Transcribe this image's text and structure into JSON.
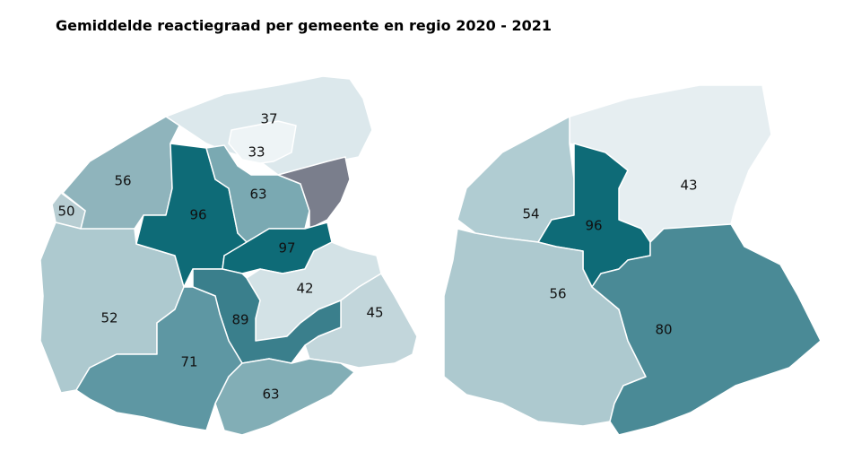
{
  "title": "Gemiddelde reactiegraad per gemeente en regio 2020 - 2021",
  "maps": [
    {
      "regions": [
        {
          "value": 37,
          "color": "#dce8ec"
        },
        {
          "value": 33,
          "color": "#eef4f6"
        },
        {
          "value": 56,
          "color": "#8fb4bc"
        },
        {
          "value": 50,
          "color": "#b7cdd2"
        },
        {
          "value": 52,
          "color": "#adc9cf"
        },
        {
          "value": 96,
          "color": "#0e6b77"
        },
        {
          "value": 63,
          "color": "#7aa9b2"
        },
        {
          "value": null,
          "color": "#7a7e8c"
        },
        {
          "value": 97,
          "color": "#0e6b77"
        },
        {
          "value": 42,
          "color": "#d3e2e6"
        },
        {
          "value": 45,
          "color": "#c2d6db"
        },
        {
          "value": 89,
          "color": "#3a7f8c"
        },
        {
          "value": 71,
          "color": "#5e97a3"
        },
        {
          "value": 63,
          "color": "#82aeb6"
        }
      ]
    },
    {
      "regions": [
        {
          "value": 43,
          "color": "#e6eef1"
        },
        {
          "value": 54,
          "color": "#b0ccd2"
        },
        {
          "value": 96,
          "color": "#0e6b77"
        },
        {
          "value": 56,
          "color": "#adc9cf"
        },
        {
          "value": 80,
          "color": "#4a8a96"
        }
      ]
    }
  ]
}
